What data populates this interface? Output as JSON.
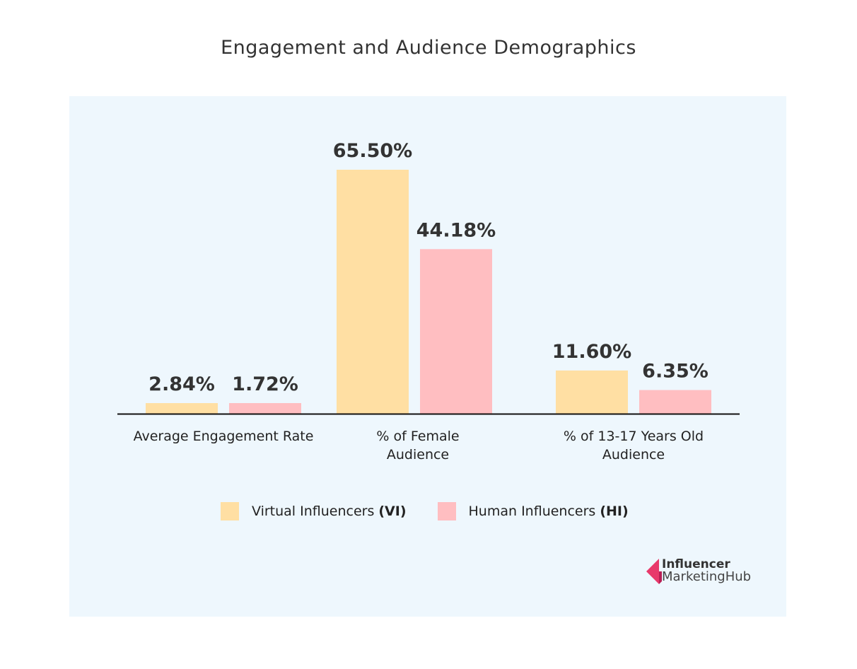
{
  "chart_data": {
    "type": "bar",
    "title": "Engagement and Audience Demographics",
    "categories": [
      "Average Engagement Rate",
      "% of Female Audience",
      "% of 13-17 Years Old Audience"
    ],
    "series": [
      {
        "name": "Virtual Influencers",
        "abbr": "(VI)",
        "color": "#FFDFA3",
        "values": [
          2.84,
          65.5,
          11.6
        ],
        "labels": [
          "2.84%",
          "65.50%",
          "11.60%"
        ]
      },
      {
        "name": "Human Influencers",
        "abbr": "(HI)",
        "color": "#FFBEC1",
        "values": [
          1.72,
          44.18,
          6.35
        ],
        "labels": [
          "1.72%",
          "44.18%",
          "6.35%"
        ]
      }
    ],
    "xlabel": "",
    "ylabel": "",
    "grid": false,
    "legend": "bottom",
    "background": "#EEF7FD"
  },
  "logo": {
    "line1": "Influencer",
    "line2": "MarketingHub",
    "color": "#E8396B"
  }
}
